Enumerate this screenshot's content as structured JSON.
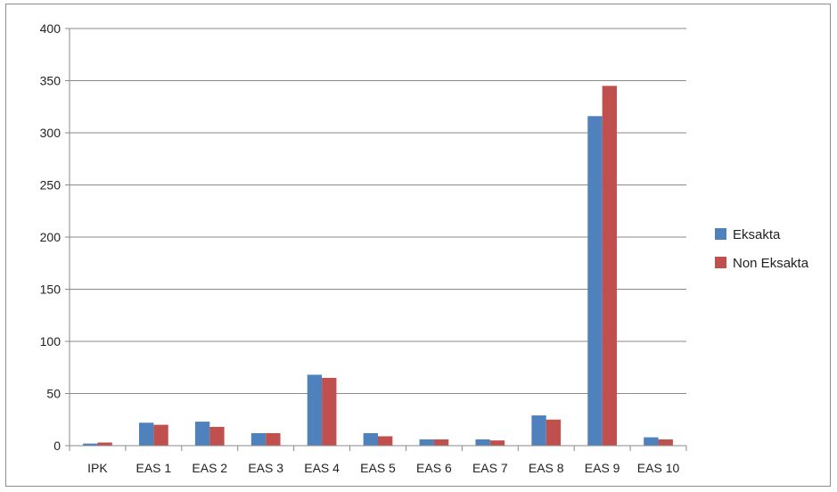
{
  "chart_data": {
    "type": "bar",
    "categories": [
      "IPK",
      "EAS 1",
      "EAS 2",
      "EAS 3",
      "EAS 4",
      "EAS 5",
      "EAS 6",
      "EAS 7",
      "EAS 8",
      "EAS 9",
      "EAS 10"
    ],
    "series": [
      {
        "name": "Eksakta",
        "color": "#4f81bd",
        "values": [
          2,
          22,
          23,
          12,
          68,
          12,
          6,
          6,
          29,
          316,
          8
        ]
      },
      {
        "name": "Non Eksakta",
        "color": "#c0504d",
        "values": [
          3,
          20,
          18,
          12,
          65,
          9,
          6,
          5,
          25,
          345,
          6
        ]
      }
    ],
    "title": "",
    "xlabel": "",
    "ylabel": "",
    "ylim": [
      0,
      400
    ],
    "yticks": [
      0,
      50,
      100,
      150,
      200,
      250,
      300,
      350,
      400
    ],
    "grid": true,
    "legend_position": "right"
  }
}
